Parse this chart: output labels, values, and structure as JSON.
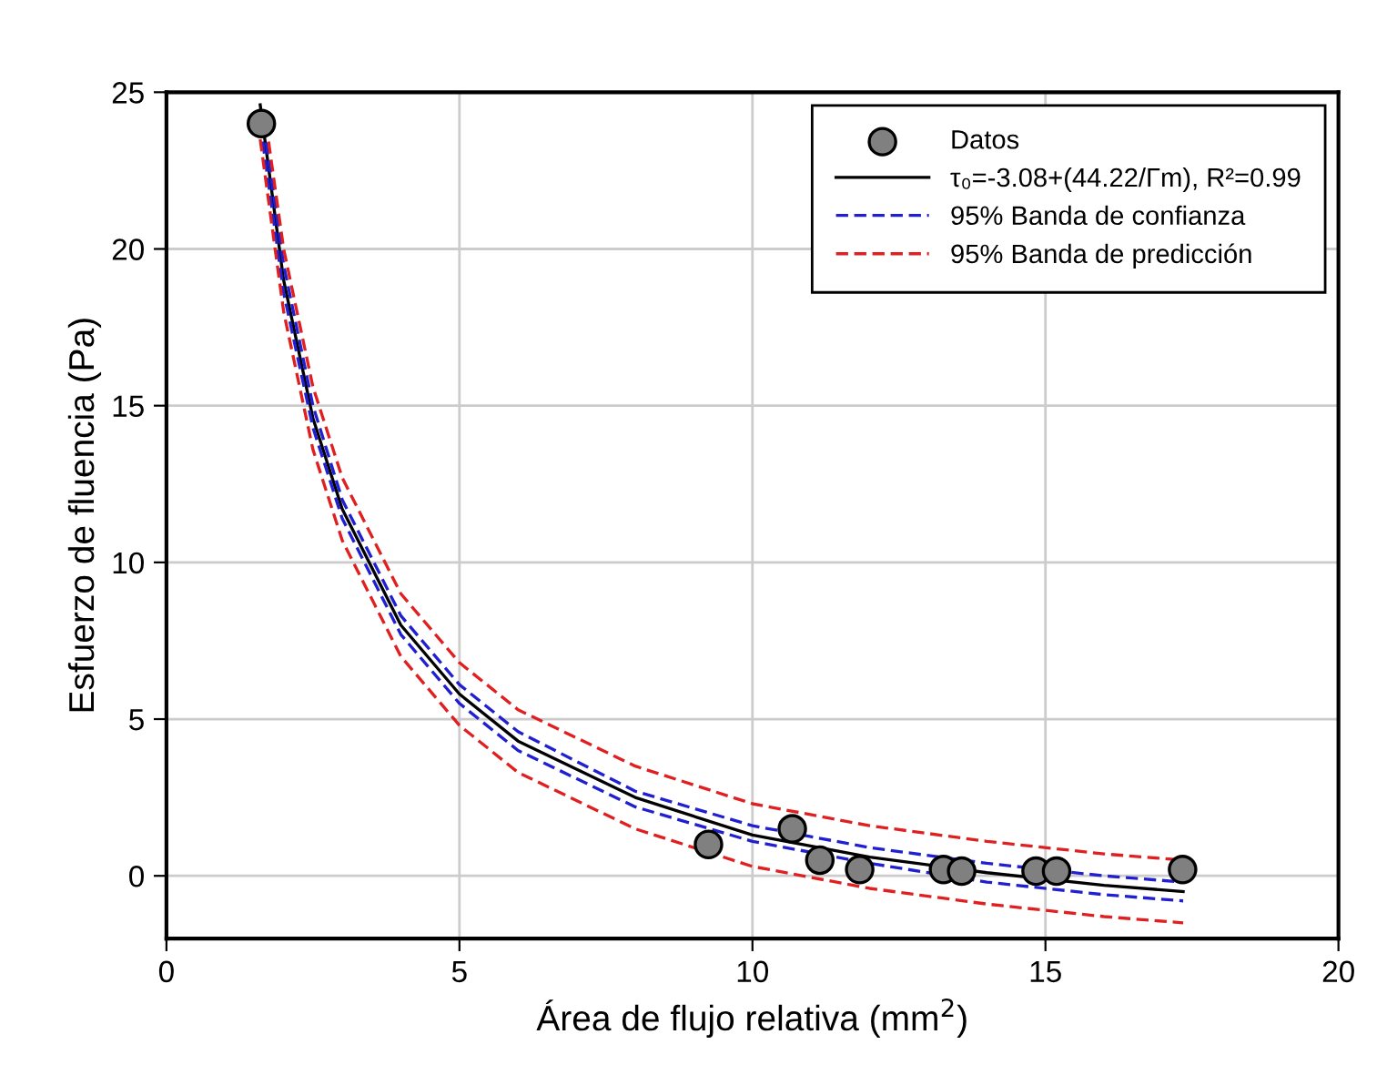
{
  "chart_data": {
    "type": "scatter",
    "xlabel": "Área de flujo relativa (mm$^{2}$)",
    "ylabel": "Esfuerzo de fluencia (Pa)",
    "xlim": [
      0,
      20
    ],
    "ylim": [
      -2,
      25
    ],
    "xticks": [
      0,
      5,
      10,
      15,
      20
    ],
    "yticks": [
      0,
      5,
      10,
      15,
      20,
      25
    ],
    "grid": true,
    "legend": "top right",
    "series": [
      {
        "name": "Datos",
        "marker": "circle",
        "color": "#808080",
        "x": [
          1.62,
          9.25,
          10.68,
          11.15,
          11.83,
          13.26,
          13.57,
          14.84,
          15.19,
          17.34
        ],
        "values": [
          24.0,
          1.0,
          1.5,
          0.5,
          0.2,
          0.2,
          0.15,
          0.15,
          0.15,
          0.2
        ]
      },
      {
        "name": "τ₀=-3.08+(44.22/Γm), R²=0.99",
        "type": "line",
        "line_style": "solid",
        "color": "#000000",
        "x": [
          1.6,
          2,
          2.5,
          3,
          4,
          5,
          6,
          8,
          10,
          12,
          14,
          16,
          17.35
        ],
        "values": [
          24.6,
          19.0,
          14.6,
          11.7,
          8.0,
          5.8,
          4.3,
          2.5,
          1.3,
          0.6,
          0.1,
          -0.3,
          -0.5
        ]
      },
      {
        "name": "95% Banda de confianza",
        "type": "line",
        "line_style": "dashed",
        "color": "#2020d0",
        "x": [
          1.7,
          2,
          2.5,
          3,
          4,
          5,
          6,
          8,
          10,
          12,
          14,
          16,
          17.35
        ],
        "values": [
          23.4,
          19.5,
          15.0,
          12.0,
          8.3,
          6.1,
          4.6,
          2.7,
          1.6,
          0.9,
          0.4,
          0.0,
          -0.2
        ]
      },
      {
        "type": "line",
        "line_style": "dashed",
        "color": "#2020d0",
        "x": [
          1.6,
          2,
          2.5,
          3,
          4,
          5,
          6,
          8,
          10,
          12,
          14,
          16,
          17.35
        ],
        "values": [
          24.0,
          18.6,
          14.3,
          11.4,
          7.7,
          5.5,
          4.0,
          2.2,
          1.1,
          0.4,
          -0.2,
          -0.6,
          -0.8
        ]
      },
      {
        "name": "95% Banda de predicción",
        "type": "line",
        "line_style": "dashed",
        "color": "#e02020",
        "x": [
          1.7,
          2,
          2.5,
          3,
          4,
          5,
          6,
          8,
          10,
          12,
          14,
          16,
          17.35
        ],
        "values": [
          24.0,
          20.0,
          15.6,
          12.7,
          9.0,
          6.8,
          5.3,
          3.5,
          2.3,
          1.6,
          1.1,
          0.7,
          0.5
        ]
      },
      {
        "type": "line",
        "line_style": "dashed",
        "color": "#e02020",
        "x": [
          1.6,
          2,
          2.5,
          3,
          4,
          5,
          6,
          8,
          10,
          12,
          14,
          16,
          17.35
        ],
        "values": [
          23.5,
          18.0,
          13.6,
          10.7,
          7.0,
          4.8,
          3.3,
          1.5,
          0.3,
          -0.4,
          -0.9,
          -1.3,
          -1.5
        ]
      }
    ]
  }
}
